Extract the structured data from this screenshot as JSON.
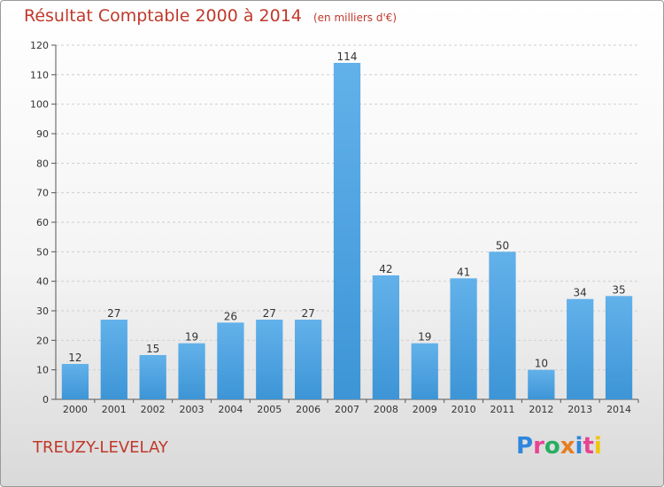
{
  "title": "Résultat Comptable 2000 à 2014",
  "unit_note": "(en milliers d'€)",
  "location": "TREUZY-LEVELAY",
  "logo": {
    "text": "Proxiti",
    "letters": [
      "P",
      "r",
      "o",
      "x",
      "i",
      "t",
      "i"
    ],
    "colors": [
      "#2e86de",
      "#e84393",
      "#27ae60",
      "#e67e22",
      "#2e86de",
      "#e84393",
      "#f1c40f"
    ]
  },
  "colors": {
    "bar": "#3d95d6",
    "bar_light": "#62b1ea",
    "accent": "#c0392b"
  },
  "chart_data": {
    "type": "bar",
    "title": "Résultat Comptable 2000 à 2014",
    "categories": [
      "2000",
      "2001",
      "2002",
      "2003",
      "2004",
      "2005",
      "2006",
      "2007",
      "2008",
      "2009",
      "2010",
      "2011",
      "2012",
      "2013",
      "2014"
    ],
    "values": [
      12,
      27,
      15,
      19,
      26,
      27,
      27,
      114,
      42,
      19,
      41,
      50,
      10,
      34,
      35
    ],
    "ylim": [
      0,
      120
    ],
    "yticks": [
      0,
      10,
      20,
      30,
      40,
      50,
      60,
      70,
      80,
      90,
      100,
      110,
      120
    ],
    "grid": true
  }
}
